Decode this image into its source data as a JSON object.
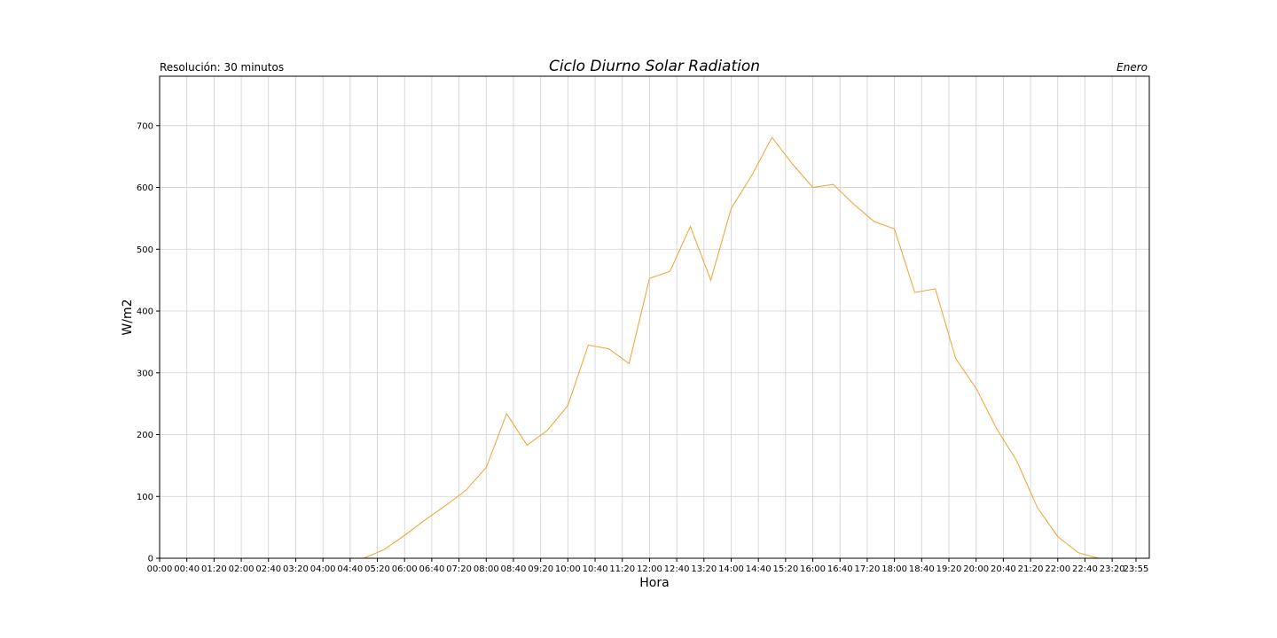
{
  "chart_data": {
    "type": "line",
    "title": "Ciclo Diurno Solar Radiation",
    "subtitle_left": "Resolución: 30 minutos",
    "subtitle_right": "Enero",
    "xlabel": "Hora",
    "ylabel": "W/m2",
    "ylim": [
      0,
      780
    ],
    "yticks": [
      0,
      100,
      200,
      300,
      400,
      500,
      600,
      700
    ],
    "xticks": [
      "00:00",
      "00:40",
      "01:20",
      "02:00",
      "02:40",
      "03:20",
      "04:00",
      "04:40",
      "05:20",
      "06:00",
      "06:40",
      "07:20",
      "08:00",
      "08:40",
      "09:20",
      "10:00",
      "10:40",
      "11:20",
      "12:00",
      "12:40",
      "13:20",
      "14:00",
      "14:40",
      "15:20",
      "16:00",
      "16:40",
      "17:20",
      "18:00",
      "18:40",
      "19:20",
      "20:00",
      "20:40",
      "21:20",
      "22:00",
      "22:40",
      "23:20",
      "23:55"
    ],
    "grid": true,
    "series": [
      {
        "color": "#f0a030",
        "x": [
          "00:00",
          "00:30",
          "01:00",
          "01:30",
          "02:00",
          "02:30",
          "03:00",
          "03:30",
          "04:00",
          "04:30",
          "05:00",
          "05:30",
          "06:00",
          "06:30",
          "07:00",
          "07:30",
          "08:00",
          "08:30",
          "09:00",
          "09:30",
          "10:00",
          "10:30",
          "11:00",
          "11:30",
          "12:00",
          "12:30",
          "13:00",
          "13:30",
          "14:00",
          "14:30",
          "15:00",
          "15:30",
          "16:00",
          "16:30",
          "17:00",
          "17:30",
          "18:00",
          "18:30",
          "19:00",
          "19:30",
          "20:00",
          "20:30",
          "21:00",
          "21:30",
          "22:00",
          "22:30",
          "23:00",
          "23:30",
          "23:55"
        ],
        "values": [
          0,
          0,
          0,
          0,
          0,
          0,
          0,
          0,
          0,
          0,
          0,
          14,
          37,
          62,
          85,
          110,
          147,
          234,
          183,
          207,
          247,
          345,
          339,
          315,
          453,
          464,
          537,
          450,
          566,
          619,
          681,
          638,
          600,
          605,
          573,
          545,
          533,
          430,
          436,
          323,
          275,
          210,
          157,
          82,
          35,
          9,
          0,
          0,
          0
        ]
      }
    ]
  }
}
